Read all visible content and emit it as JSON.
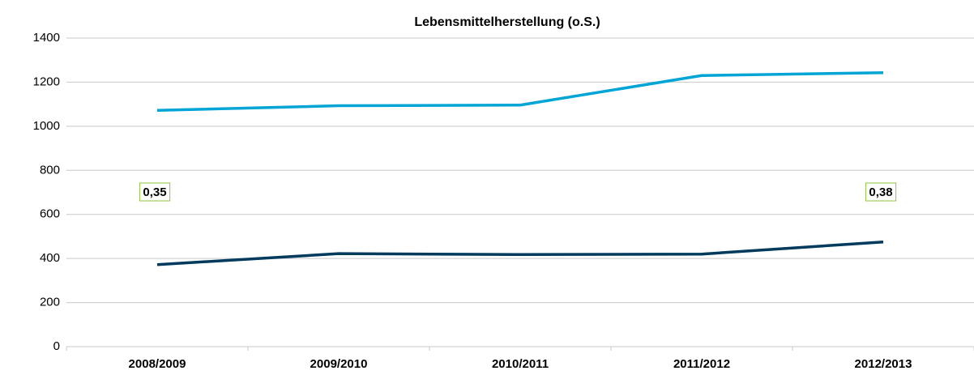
{
  "chart_data": {
    "type": "line",
    "title": "Lebensmittelherstellung (o.S.)",
    "categories": [
      "2008/2009",
      "2009/2010",
      "2010/2011",
      "2011/2012",
      "2012/2013"
    ],
    "series": [
      {
        "color": "#00a5d6",
        "values": [
          1072,
          1093,
          1096,
          1230,
          1243
        ]
      },
      {
        "color": "#003a5d",
        "values": [
          372,
          422,
          418,
          420,
          475
        ]
      }
    ],
    "annotations": [
      "0,35",
      "0,38"
    ],
    "ylim": [
      0,
      1400
    ],
    "yticks": [
      0,
      200,
      400,
      600,
      800,
      1000,
      1200,
      1400
    ],
    "grid": true
  }
}
